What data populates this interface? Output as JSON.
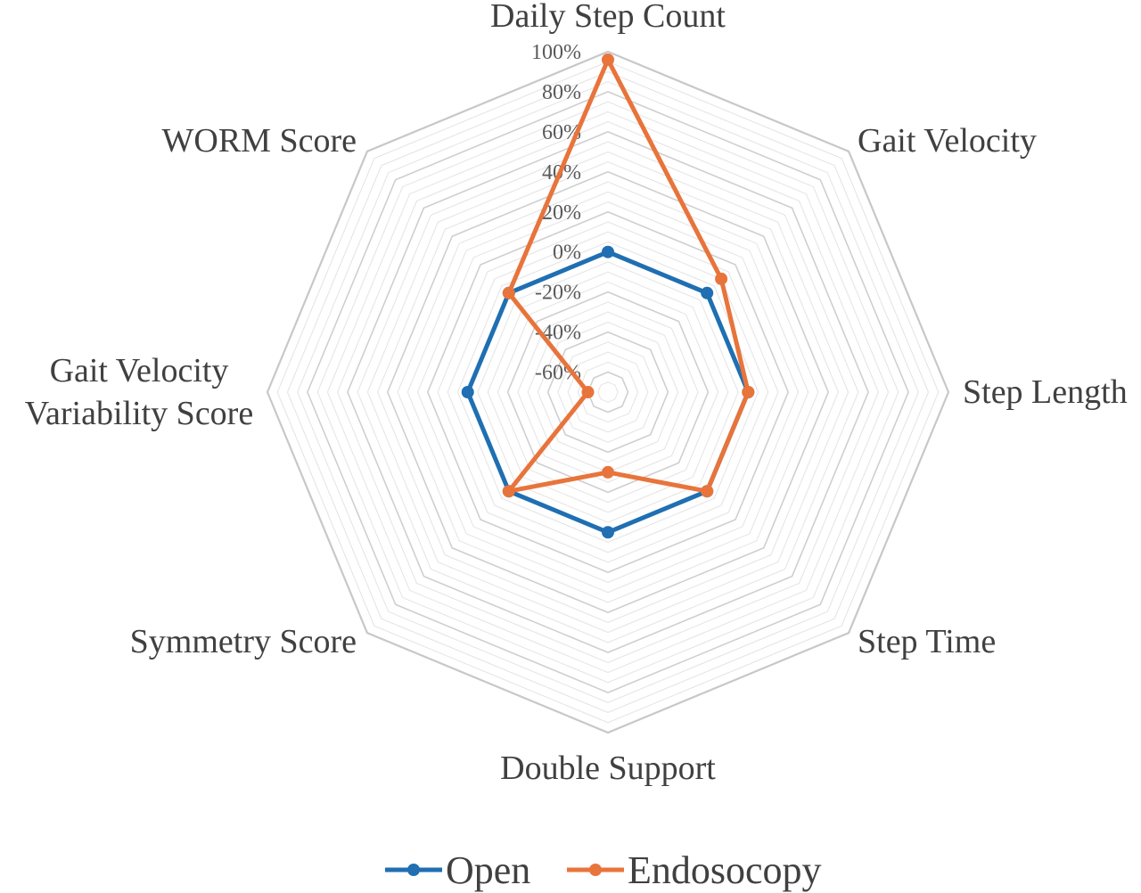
{
  "chart_data": {
    "type": "radar",
    "title": "",
    "categories": [
      "Daily Step Count",
      "Gait Velocity",
      "Step Length",
      "Step Time",
      "Double Support",
      "Symmetry Score",
      "Gait Velocity Variability Score",
      "WORM Score"
    ],
    "category_label_lines": [
      [
        "Daily Step Count"
      ],
      [
        "Gait Velocity"
      ],
      [
        "Step Length"
      ],
      [
        "Step Time"
      ],
      [
        "Double Support"
      ],
      [
        "Symmetry Score"
      ],
      [
        "Gait Velocity",
        "Variability Score"
      ],
      [
        "WORM Score"
      ]
    ],
    "r_range": [
      -70,
      100
    ],
    "r_unit": "%",
    "ticks": [
      100,
      80,
      60,
      40,
      20,
      0,
      -20,
      -40,
      -60
    ],
    "tick_labels": [
      "100%",
      "80%",
      "60%",
      "40%",
      "20%",
      "0%",
      "-20%",
      "-40%",
      "-60%"
    ],
    "minor_grid_step": 5,
    "grid": true,
    "legend_position": "bottom",
    "series": [
      {
        "name": "Open",
        "color": "#1f6fb2",
        "values": [
          0,
          0,
          0,
          0,
          0,
          0,
          0,
          0
        ]
      },
      {
        "name": "Endosocopy",
        "color": "#e8743b",
        "values": [
          96,
          10,
          0,
          0,
          -30,
          0,
          -60,
          0
        ]
      }
    ]
  }
}
